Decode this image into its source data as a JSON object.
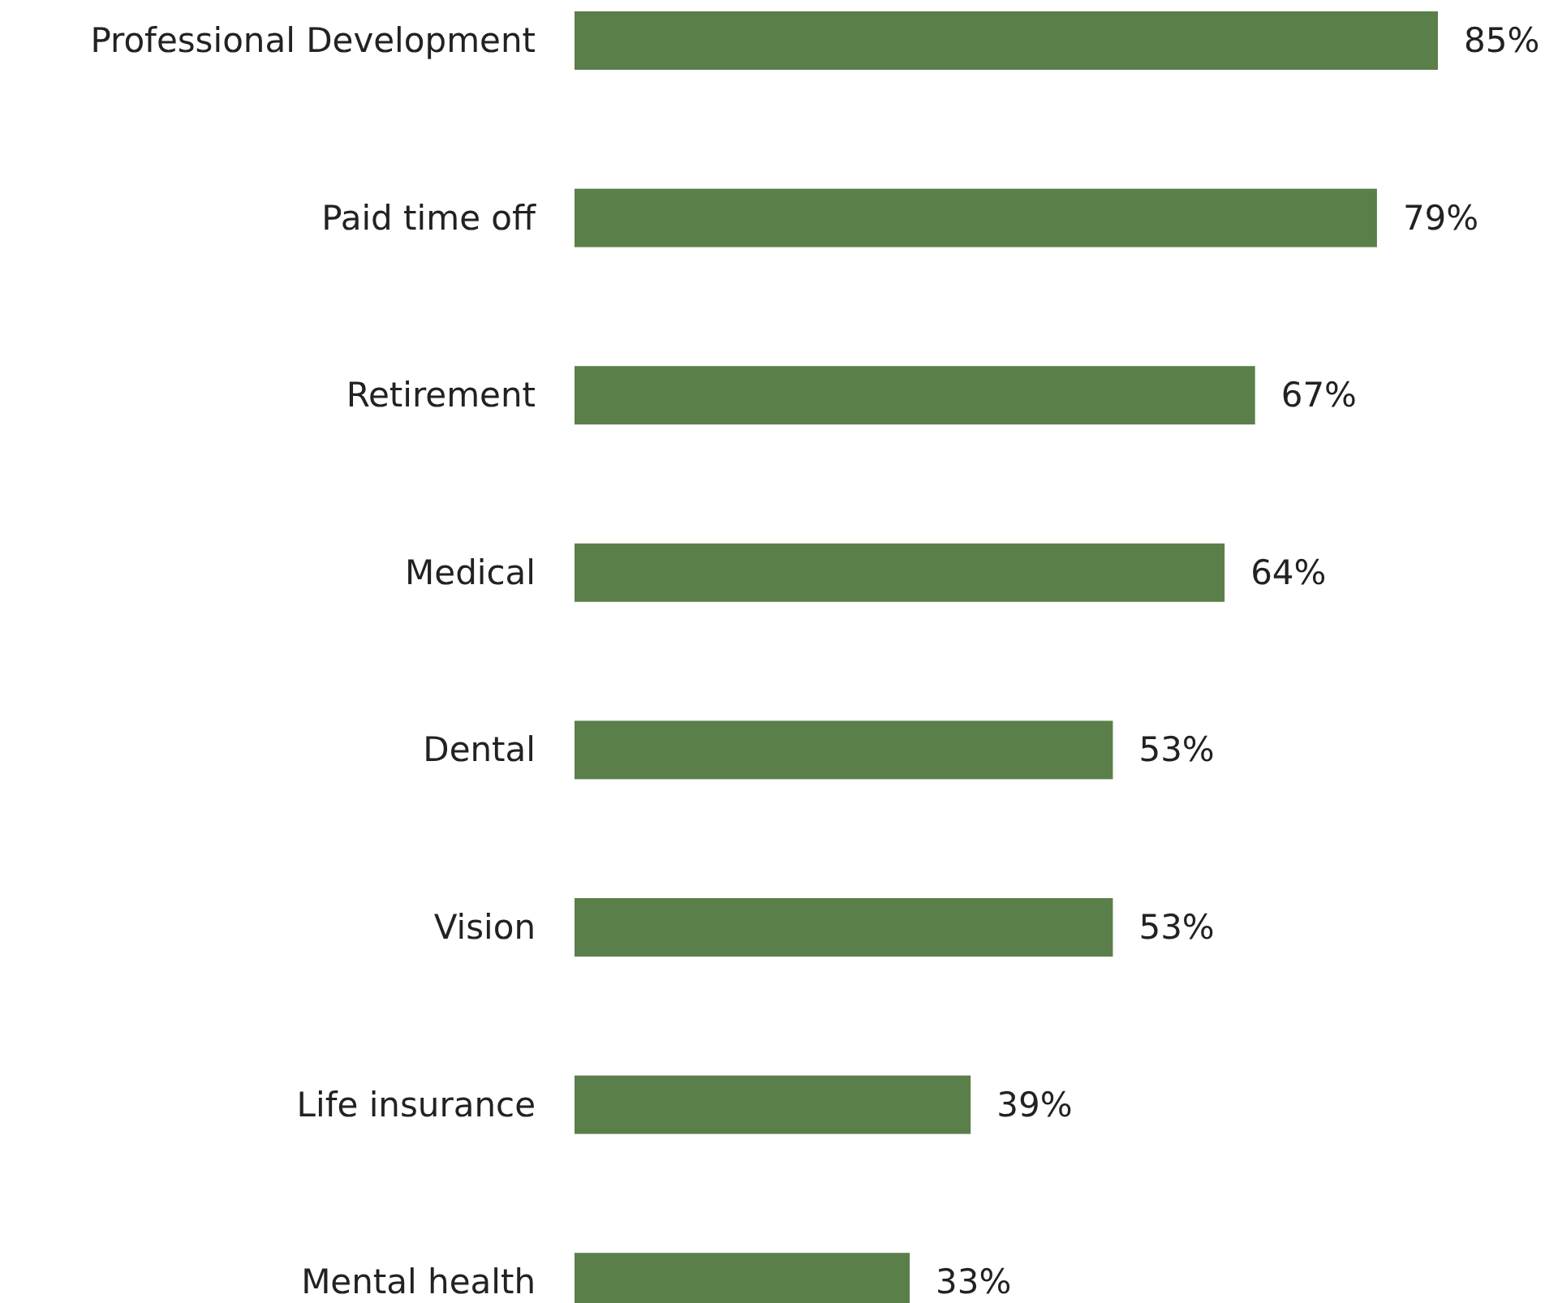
{
  "chart_data": {
    "type": "bar",
    "orientation": "horizontal",
    "categories": [
      "Professional Development",
      "Paid time off",
      "Retirement",
      "Medical",
      "Dental",
      "Vision",
      "Life insurance",
      "Mental health"
    ],
    "values": [
      85,
      79,
      67,
      64,
      53,
      53,
      39,
      33
    ],
    "value_labels": [
      "85%",
      "79%",
      "67%",
      "64%",
      "53%",
      "53%",
      "39%",
      "33%"
    ],
    "color": "#5a7f4a"
  }
}
